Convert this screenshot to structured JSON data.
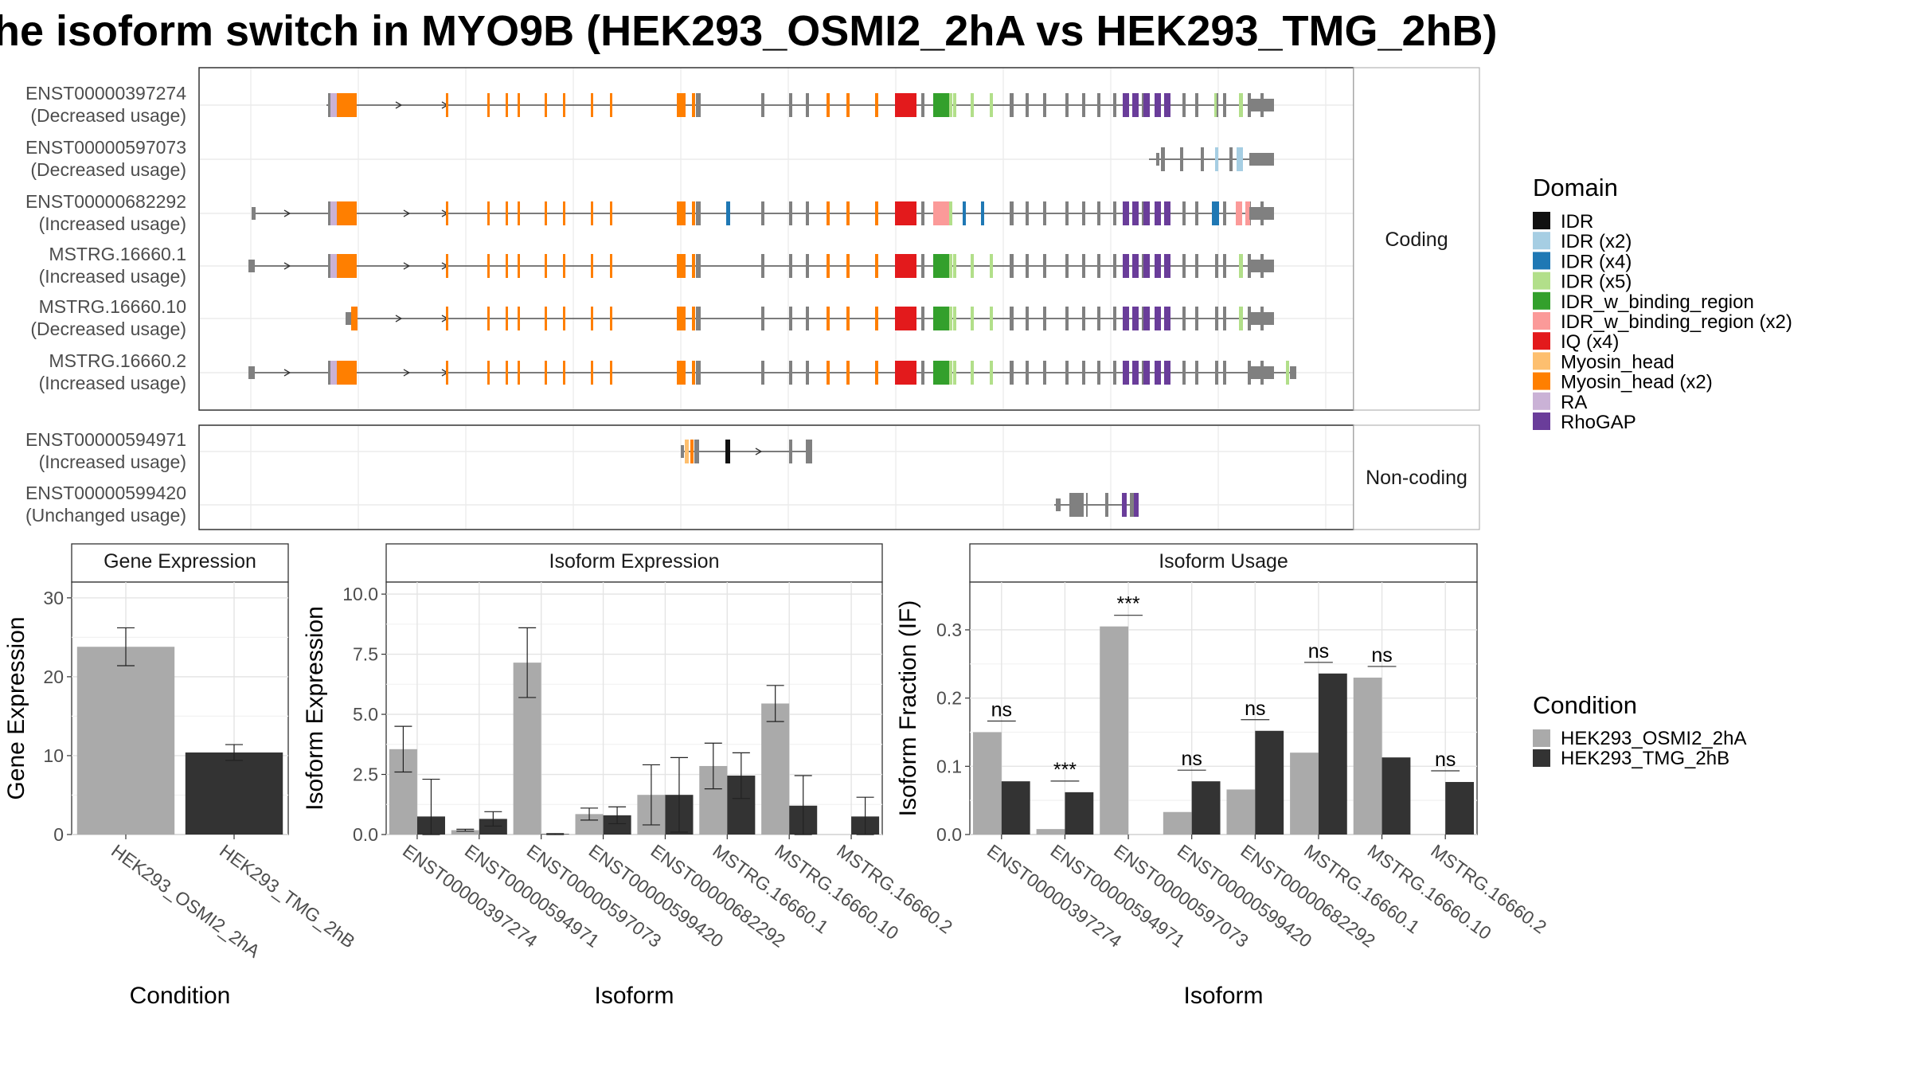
{
  "title": "he isoform switch in MYO9B (HEK293_OSMI2_2hA vs HEK293_TMG_2hB)",
  "domain_colors": {
    "IDR": "#111111",
    "IDR (x2)": "#a6cee3",
    "IDR (x4)": "#1f78b4",
    "IDR (x5)": "#b2df8a",
    "IDR_w_binding_region": "#33a02c",
    "IDR_w_binding_region (x2)": "#fb9a99",
    "IQ (x4)": "#e31a1c",
    "Myosin_head": "#fdbf6f",
    "Myosin_head (x2)": "#ff7f00",
    "RA": "#cab2d6",
    "RhoGAP": "#6a3d9a",
    "none": "#808080"
  },
  "condition_colors": {
    "HEK293_OSMI2_2hA": "#aaaaaa",
    "HEK293_TMG_2hB": "#333333"
  },
  "isoform_plot": {
    "coding_label": "Coding",
    "noncoding_label": "Non-coding",
    "coding": [
      {
        "name": "ENST00000397274",
        "usage": "(Decreased usage)"
      },
      {
        "name": "ENST00000597073",
        "usage": "(Decreased usage)"
      },
      {
        "name": "ENST00000682292",
        "usage": "(Increased usage)"
      },
      {
        "name": "MSTRG.16660.1",
        "usage": "(Increased usage)"
      },
      {
        "name": "MSTRG.16660.10",
        "usage": "(Decreased usage)"
      },
      {
        "name": "MSTRG.16660.2",
        "usage": "(Increased usage)"
      }
    ],
    "noncoding": [
      {
        "name": "ENST00000594971",
        "usage": "(Increased usage)"
      },
      {
        "name": "ENST00000599420",
        "usage": "(Unchanged usage)"
      }
    ]
  },
  "legend_domain": {
    "title": "Domain",
    "items": [
      "IDR",
      "IDR (x2)",
      "IDR (x4)",
      "IDR (x5)",
      "IDR_w_binding_region",
      "IDR_w_binding_region (x2)",
      "IQ (x4)",
      "Myosin_head",
      "Myosin_head (x2)",
      "RA",
      "RhoGAP"
    ]
  },
  "legend_condition": {
    "title": "Condition",
    "items": [
      "HEK293_OSMI2_2hA",
      "HEK293_TMG_2hB"
    ]
  },
  "chart_data": [
    {
      "type": "bar",
      "title": "Gene Expression",
      "xlabel": "Condition",
      "ylabel": "Gene Expression",
      "categories": [
        "HEK293_OSMI2_2hA",
        "HEK293_TMG_2hB"
      ],
      "values": [
        23.8,
        10.4
      ],
      "error_low": [
        21.4,
        9.4
      ],
      "error_high": [
        26.2,
        11.4
      ],
      "ylim": [
        0,
        32
      ],
      "yticks": [
        0,
        10,
        20,
        30
      ],
      "ytick_labels": [
        "0",
        "10",
        "20",
        "30"
      ]
    },
    {
      "type": "bar",
      "title": "Isoform Expression",
      "xlabel": "Isoform",
      "ylabel": "Isoform Expression",
      "categories": [
        "ENST00000397274",
        "ENST00000594971",
        "ENST00000597073",
        "ENST00000599420",
        "ENST00000682292",
        "MSTRG.16660.1",
        "MSTRG.16660.10",
        "MSTRG.16660.2"
      ],
      "series": [
        {
          "name": "HEK293_OSMI2_2hA",
          "values": [
            3.55,
            0.18,
            7.15,
            0.85,
            1.65,
            2.85,
            5.45,
            0.0
          ],
          "error_low": [
            2.6,
            0.14,
            5.7,
            0.6,
            0.4,
            1.9,
            4.7,
            0.0
          ],
          "error_high": [
            4.5,
            0.22,
            8.6,
            1.1,
            2.9,
            3.8,
            6.2,
            0.0
          ]
        },
        {
          "name": "HEK293_TMG_2hB",
          "values": [
            0.75,
            0.65,
            0.02,
            0.8,
            1.65,
            2.45,
            1.2,
            0.75
          ],
          "error_low": [
            0.0,
            0.35,
            0.0,
            0.45,
            0.1,
            1.5,
            0.0,
            0.0
          ],
          "error_high": [
            2.3,
            0.95,
            0.04,
            1.15,
            3.2,
            3.4,
            2.45,
            1.55
          ]
        }
      ],
      "ylim": [
        0,
        10.5
      ],
      "yticks": [
        0,
        2.5,
        5,
        7.5,
        10
      ],
      "ytick_labels": [
        "0.0",
        "2.5",
        "5.0",
        "7.5",
        "10.0"
      ]
    },
    {
      "type": "bar",
      "title": "Isoform Usage",
      "xlabel": "Isoform",
      "ylabel": "Isoform Fraction (IF)",
      "categories": [
        "ENST00000397274",
        "ENST00000594971",
        "ENST00000597073",
        "ENST00000599420",
        "ENST00000682292",
        "MSTRG.16660.1",
        "MSTRG.16660.10",
        "MSTRG.16660.2"
      ],
      "series": [
        {
          "name": "HEK293_OSMI2_2hA",
          "values": [
            0.15,
            0.008,
            0.305,
            0.033,
            0.066,
            0.12,
            0.23,
            0.0
          ]
        },
        {
          "name": "HEK293_TMG_2hB",
          "values": [
            0.078,
            0.062,
            0.0,
            0.078,
            0.152,
            0.236,
            0.113,
            0.077
          ]
        }
      ],
      "significance": [
        "ns",
        "***",
        "***",
        "ns",
        "ns",
        "ns",
        "ns",
        "ns"
      ],
      "ylim": [
        0,
        0.37
      ],
      "yticks": [
        0,
        0.1,
        0.2,
        0.3
      ],
      "ytick_labels": [
        "0.0",
        "0.1",
        "0.2",
        "0.3"
      ]
    }
  ]
}
